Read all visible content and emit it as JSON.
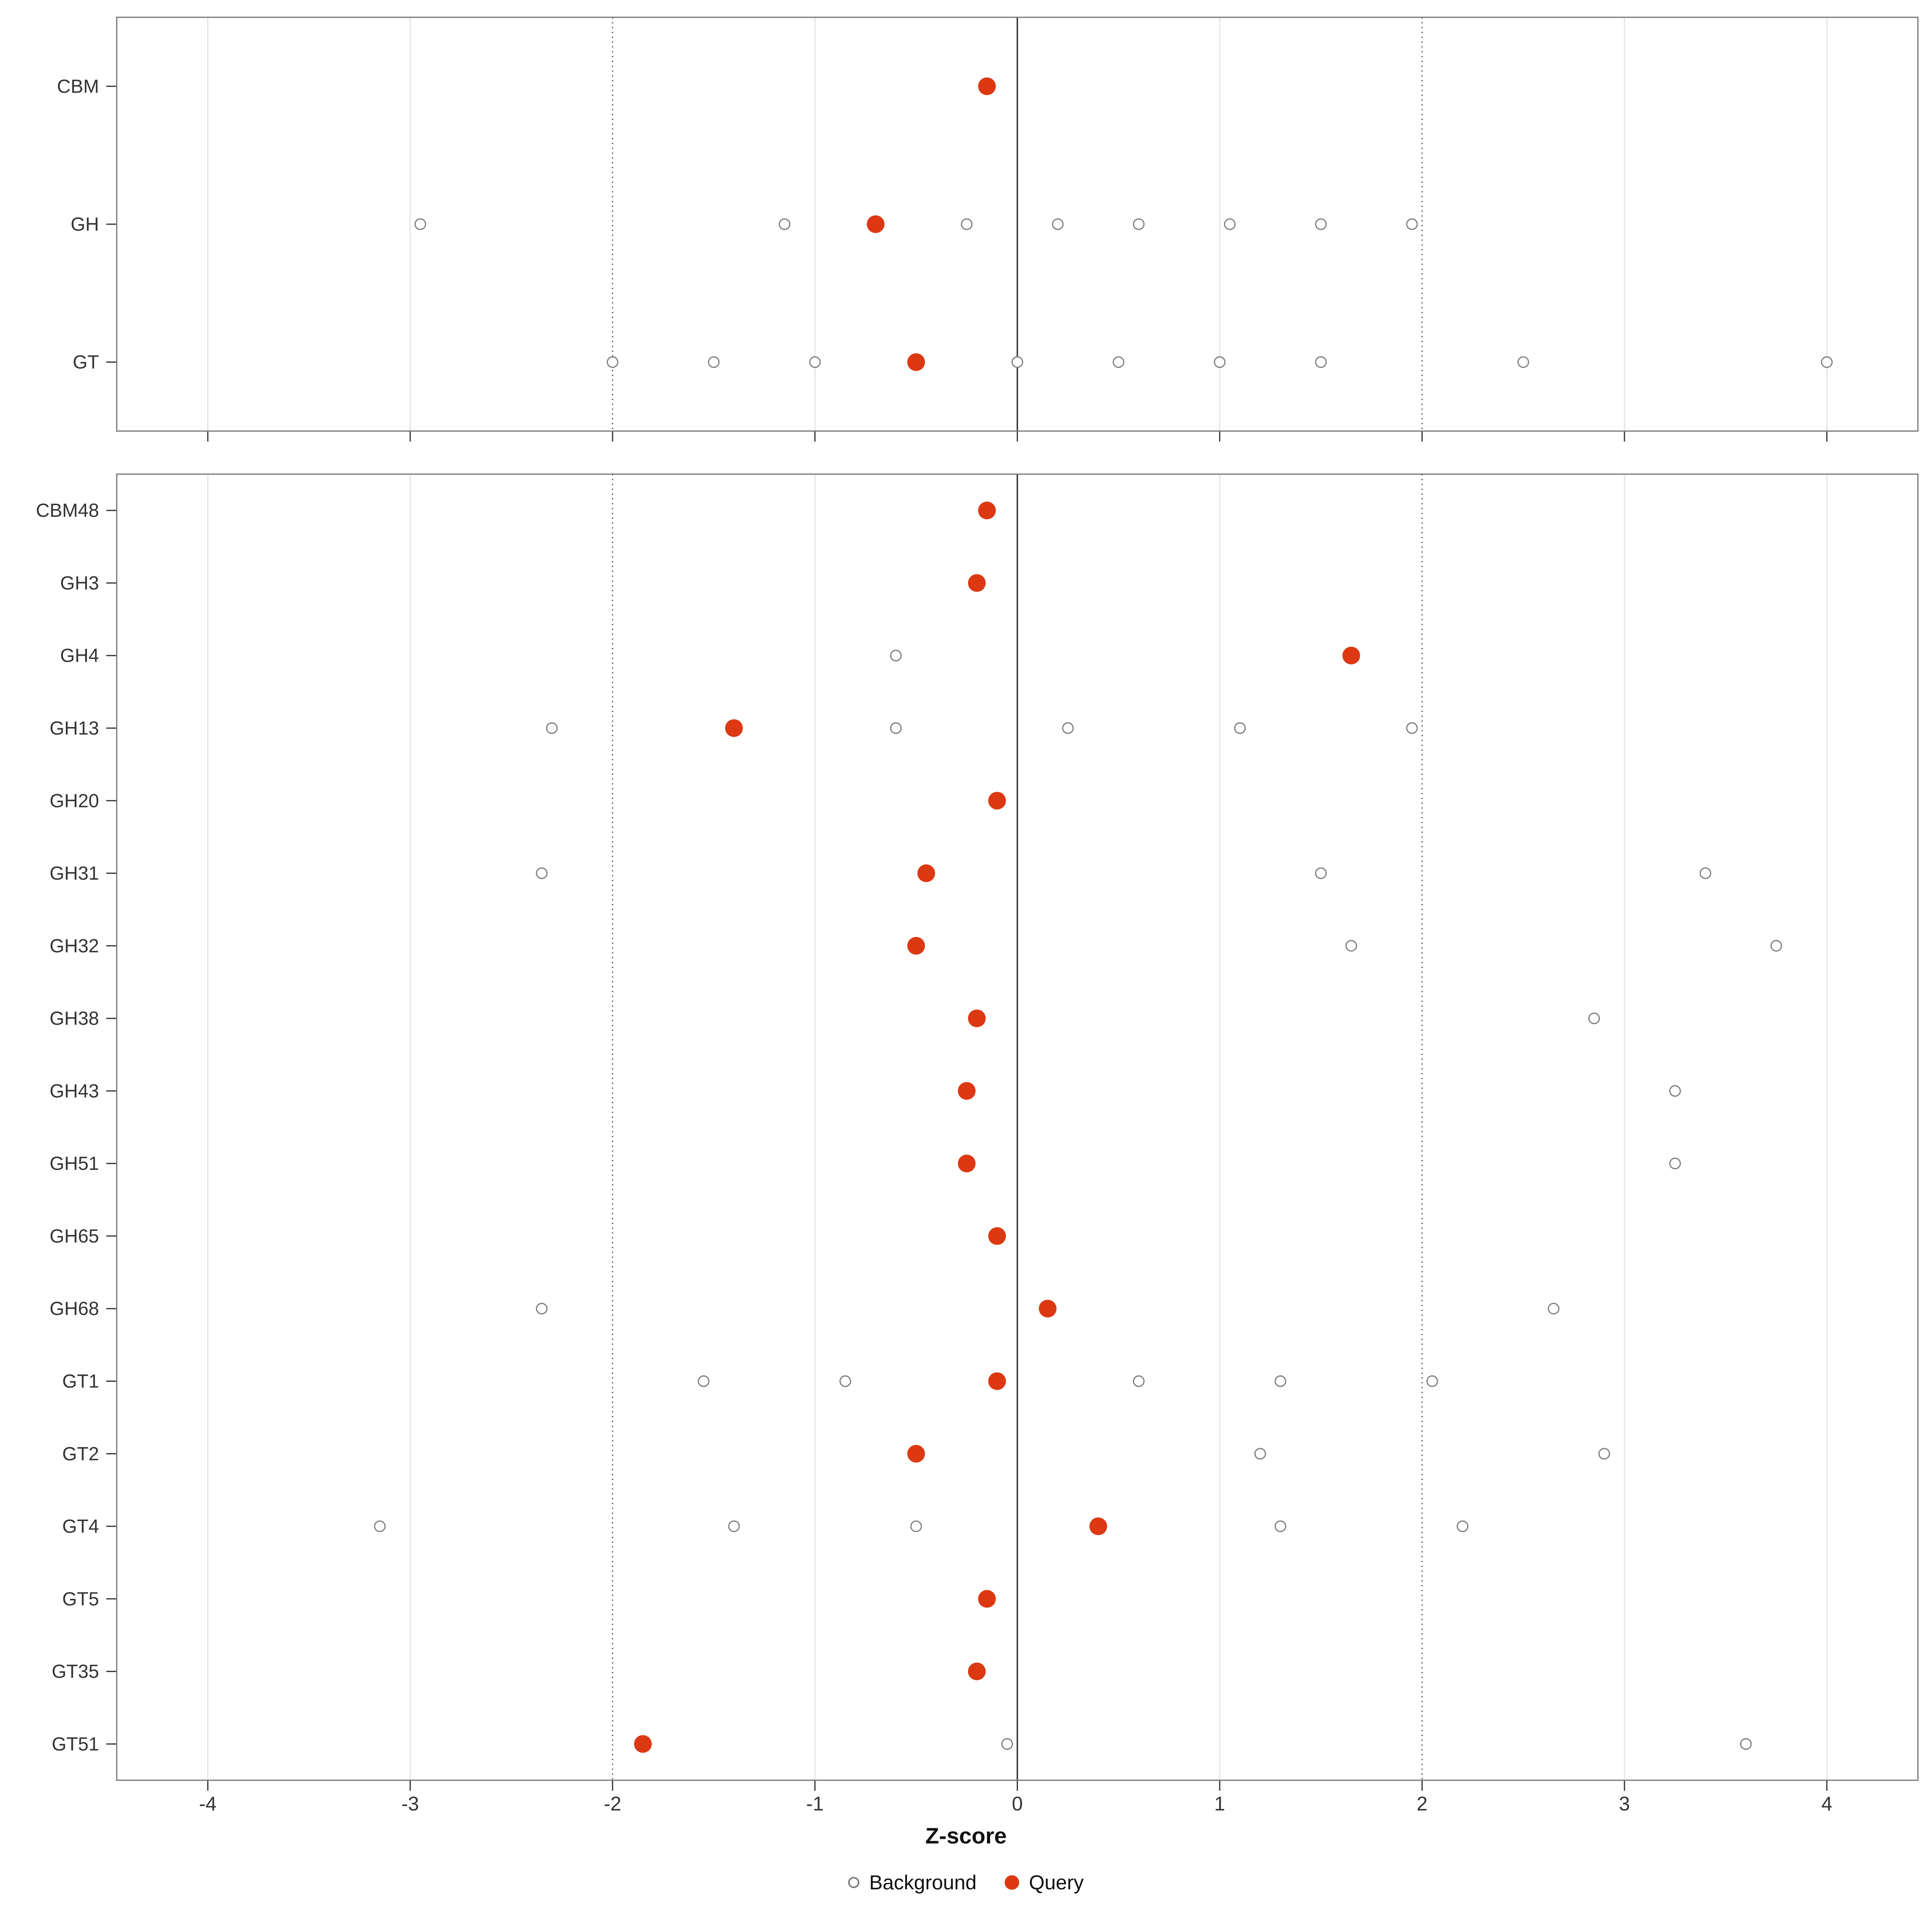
{
  "chart_data": {
    "type": "scatter",
    "title": "",
    "xlabel": "Z-score",
    "ylabel": "",
    "x_ticks": [
      -4,
      -3,
      -2,
      -1,
      0,
      1,
      2,
      3,
      4
    ],
    "xlim": [
      -4.45,
      4.45
    ],
    "grid": true,
    "reference_lines": {
      "solid": [
        0
      ],
      "dotted": [
        -2,
        2
      ]
    },
    "legend": {
      "position": "bottom",
      "background_label": "Background",
      "query_label": "Query"
    },
    "colors": {
      "query": "#DC3912",
      "background_stroke": "#7f7f7f",
      "background_fill": "#ffffff",
      "grid": "#e4e4e4",
      "reference": "#303030",
      "panel_border": "#777777",
      "axis_text": "#333333",
      "tick_mark": "#333333"
    },
    "panels": [
      {
        "name": "cazyme-classes",
        "rows": [
          {
            "label": "CBM",
            "background": [],
            "query": -0.15
          },
          {
            "label": "GH",
            "background": [
              -2.95,
              -1.15,
              -0.25,
              0.2,
              0.6,
              1.05,
              1.5,
              1.95
            ],
            "query": -0.7
          },
          {
            "label": "GT",
            "background": [
              -2.0,
              -1.5,
              -1.0,
              0.0,
              0.5,
              1.0,
              1.5,
              2.5,
              4.0
            ],
            "query": -0.5
          }
        ]
      },
      {
        "name": "cazyme-families",
        "rows": [
          {
            "label": "CBM48",
            "background": [],
            "query": -0.15
          },
          {
            "label": "GH3",
            "background": [],
            "query": -0.2
          },
          {
            "label": "GH4",
            "background": [
              -0.6
            ],
            "query": 1.65
          },
          {
            "label": "GH13",
            "background": [
              -2.3,
              -0.6,
              0.25,
              1.1,
              1.95
            ],
            "query": -1.4
          },
          {
            "label": "GH20",
            "background": [],
            "query": -0.1
          },
          {
            "label": "GH31",
            "background": [
              -2.35,
              1.5,
              3.4
            ],
            "query": -0.45
          },
          {
            "label": "GH32",
            "background": [
              1.65,
              3.75
            ],
            "query": -0.5
          },
          {
            "label": "GH38",
            "background": [
              2.85
            ],
            "query": -0.2
          },
          {
            "label": "GH43",
            "background": [
              3.25
            ],
            "query": -0.25
          },
          {
            "label": "GH51",
            "background": [
              3.25
            ],
            "query": -0.25
          },
          {
            "label": "GH65",
            "background": [],
            "query": -0.1
          },
          {
            "label": "GH68",
            "background": [
              -2.35,
              2.65
            ],
            "query": 0.15
          },
          {
            "label": "GT1",
            "background": [
              -1.55,
              -0.85,
              0.6,
              1.3,
              2.05
            ],
            "query": -0.1
          },
          {
            "label": "GT2",
            "background": [
              1.2,
              2.9
            ],
            "query": -0.5
          },
          {
            "label": "GT4",
            "background": [
              -3.15,
              -1.4,
              -0.5,
              1.3,
              2.2
            ],
            "query": 0.4
          },
          {
            "label": "GT5",
            "background": [],
            "query": -0.15
          },
          {
            "label": "GT35",
            "background": [],
            "query": -0.2
          },
          {
            "label": "GT51",
            "background": [
              -0.05,
              3.6
            ],
            "query": -1.85
          }
        ]
      }
    ]
  }
}
